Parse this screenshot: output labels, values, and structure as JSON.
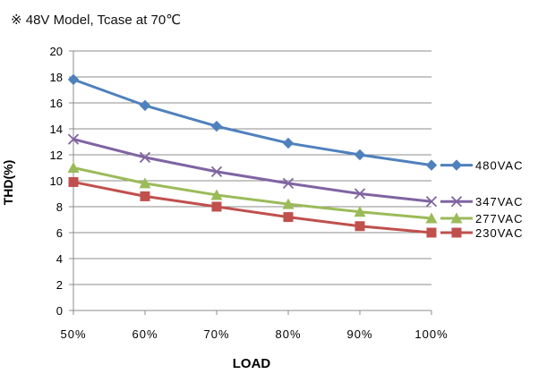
{
  "chart_data": {
    "type": "line",
    "title": "※ 48V Model, Tcase at 70℃",
    "xlabel": "LOAD",
    "ylabel": "THD(%)",
    "categories": [
      "50%",
      "60%",
      "70%",
      "80%",
      "90%",
      "100%"
    ],
    "ylim": [
      0,
      20
    ],
    "yticks": [
      0,
      2,
      4,
      6,
      8,
      10,
      12,
      14,
      16,
      18,
      20
    ],
    "grid": true,
    "legend_position": "right",
    "series": [
      {
        "name": "480VAC",
        "values": [
          17.8,
          15.8,
          14.2,
          12.9,
          12.0,
          11.2
        ],
        "color": "#4f81bd",
        "marker": "diamond"
      },
      {
        "name": "347VAC",
        "values": [
          13.2,
          11.8,
          10.7,
          9.8,
          9.0,
          8.4
        ],
        "color": "#8064a2",
        "marker": "x"
      },
      {
        "name": "277VAC",
        "values": [
          11.0,
          9.8,
          8.9,
          8.2,
          7.6,
          7.1
        ],
        "color": "#9bbb59",
        "marker": "triangle"
      },
      {
        "name": "230VAC",
        "values": [
          9.9,
          8.8,
          8.0,
          7.2,
          6.5,
          6.0
        ],
        "color": "#c0504d",
        "marker": "square"
      }
    ]
  }
}
